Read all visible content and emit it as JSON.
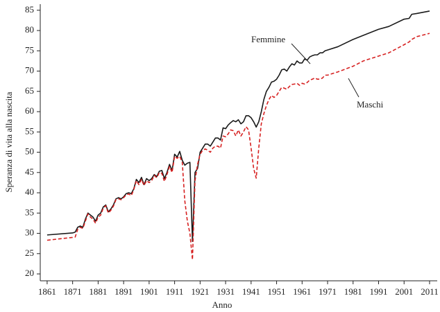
{
  "chart_data": {
    "type": "line",
    "xlabel": "Anno",
    "ylabel": "Speranza di vita alla nascita",
    "x": [
      1861,
      1871,
      1872,
      1873,
      1874,
      1875,
      1876,
      1877,
      1878,
      1879,
      1880,
      1881,
      1882,
      1883,
      1884,
      1885,
      1886,
      1887,
      1888,
      1889,
      1890,
      1891,
      1892,
      1893,
      1894,
      1895,
      1896,
      1897,
      1898,
      1899,
      1900,
      1901,
      1902,
      1903,
      1904,
      1905,
      1906,
      1907,
      1908,
      1909,
      1910,
      1911,
      1912,
      1913,
      1914,
      1915,
      1916,
      1917,
      1918,
      1919,
      1920,
      1921,
      1922,
      1923,
      1924,
      1925,
      1926,
      1927,
      1928,
      1929,
      1930,
      1931,
      1932,
      1933,
      1934,
      1935,
      1936,
      1937,
      1938,
      1939,
      1940,
      1941,
      1942,
      1943,
      1944,
      1945,
      1946,
      1947,
      1948,
      1949,
      1950,
      1951,
      1952,
      1953,
      1954,
      1955,
      1956,
      1957,
      1958,
      1959,
      1960,
      1961,
      1962,
      1963,
      1964,
      1965,
      1966,
      1967,
      1968,
      1969,
      1970,
      1971,
      1975,
      1981,
      1985,
      1991,
      1995,
      2001,
      2003,
      2004,
      2006,
      2011
    ],
    "series": [
      {
        "name": "Femmine",
        "color": "#1a1a1a",
        "dash": false,
        "values": [
          29.6,
          30.1,
          30.3,
          31.5,
          31.8,
          31.5,
          33.5,
          35.0,
          34.5,
          34.0,
          33.0,
          34.5,
          35.0,
          36.5,
          37.0,
          35.3,
          36.0,
          37.0,
          38.5,
          38.8,
          38.5,
          39.0,
          39.8,
          40.0,
          39.8,
          41.0,
          43.3,
          42.5,
          43.8,
          42.0,
          43.5,
          43.0,
          43.5,
          44.5,
          44.0,
          45.3,
          45.5,
          43.5,
          45.0,
          47.0,
          45.5,
          49.5,
          48.8,
          50.2,
          48.0,
          46.8,
          47.3,
          47.5,
          28.0,
          45.0,
          46.0,
          50.0,
          51.0,
          52.0,
          52.0,
          51.5,
          52.5,
          53.5,
          53.5,
          53.0,
          56.0,
          55.8,
          56.7,
          57.3,
          57.8,
          57.5,
          58.0,
          57.0,
          57.5,
          59.0,
          59.0,
          58.5,
          57.5,
          56.2,
          57.5,
          60.0,
          63.0,
          65.0,
          66.0,
          67.3,
          67.5,
          68.0,
          69.0,
          70.3,
          70.5,
          70.0,
          71.0,
          71.8,
          71.5,
          72.5,
          72.0,
          72.0,
          73.0,
          72.7,
          73.5,
          73.8,
          74.0,
          74.0,
          74.5,
          74.5,
          75.0,
          75.2,
          76.0,
          77.8,
          78.8,
          80.3,
          81.0,
          82.8,
          83.0,
          84.0,
          84.2,
          84.8
        ]
      },
      {
        "name": "Maschi",
        "color": "#d62020",
        "dash": true,
        "values": [
          28.3,
          29.0,
          29.1,
          31.0,
          31.5,
          31.2,
          33.0,
          34.8,
          34.0,
          33.5,
          32.5,
          34.0,
          34.5,
          36.2,
          36.8,
          35.0,
          35.7,
          36.7,
          38.3,
          38.5,
          38.3,
          38.8,
          39.5,
          39.7,
          39.3,
          40.8,
          43.0,
          42.0,
          43.3,
          41.8,
          43.0,
          42.5,
          43.0,
          44.3,
          43.7,
          45.0,
          44.8,
          42.8,
          44.5,
          46.5,
          45.0,
          49.0,
          48.5,
          49.0,
          47.5,
          38.0,
          33.0,
          30.0,
          23.5,
          43.0,
          47.0,
          49.5,
          50.5,
          50.8,
          50.5,
          50.0,
          51.0,
          51.5,
          51.5,
          51.0,
          54.0,
          53.8,
          54.5,
          55.5,
          55.3,
          54.0,
          55.5,
          54.0,
          55.0,
          56.3,
          55.5,
          51.0,
          46.0,
          43.6,
          51.0,
          57.0,
          59.5,
          61.5,
          63.0,
          64.0,
          63.5,
          64.0,
          65.0,
          66.0,
          65.8,
          65.5,
          66.2,
          66.7,
          66.8,
          67.0,
          66.5,
          67.0,
          66.8,
          67.2,
          67.8,
          68.0,
          68.3,
          68.0,
          68.0,
          68.3,
          69.0,
          69.0,
          69.8,
          71.2,
          72.5,
          73.7,
          74.5,
          76.5,
          77.2,
          77.8,
          78.5,
          79.3
        ]
      }
    ],
    "xlim": [
      1858.3,
      2014
    ],
    "ylim": [
      18.3,
      86.5
    ],
    "xticks": [
      1861,
      1871,
      1881,
      1891,
      1901,
      1911,
      1921,
      1931,
      1941,
      1951,
      1961,
      1971,
      1981,
      1991,
      2001,
      2011
    ],
    "yticks": [
      20,
      25,
      30,
      35,
      40,
      45,
      50,
      55,
      60,
      65,
      70,
      75,
      80,
      85
    ]
  }
}
